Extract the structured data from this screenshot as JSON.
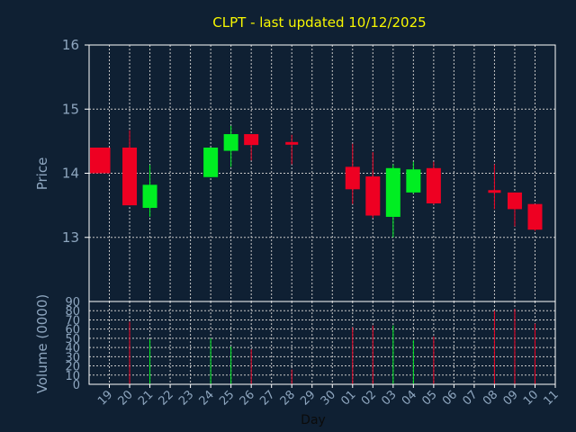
{
  "chart_data": {
    "type": "candlestick",
    "title": "CLPT - last updated 10/12/2025",
    "colors": {
      "background": "#0f2033",
      "plot_background": "#0f2033",
      "up": "#00ee22",
      "down": "#ee0022",
      "grid": "#c8c8c8",
      "text": "#8ea6bf",
      "title": "#f7f700"
    },
    "price_panel": {
      "ylabel": "Price",
      "ylim": [
        12.0,
        16.0
      ],
      "yticks": [
        "13",
        "14",
        "15",
        "16"
      ],
      "grid": true
    },
    "volume_panel": {
      "ylabel": "Volume (0000)",
      "ylim": [
        0,
        90
      ],
      "yticks": [
        "0",
        "10",
        "20",
        "30",
        "40",
        "50",
        "60",
        "70",
        "80",
        "90"
      ],
      "grid": true
    },
    "x_axis": {
      "xlabel": "Day",
      "tick_labels": [
        "19",
        "20",
        "21",
        "22",
        "23",
        "24",
        "25",
        "26",
        "27",
        "28",
        "29",
        "30",
        "01",
        "02",
        "03",
        "04",
        "05",
        "06",
        "07",
        "08",
        "09",
        "10",
        "11"
      ]
    },
    "candles": [
      {
        "day": "19",
        "open": 14.4,
        "close": 14.0,
        "high": 14.4,
        "low": 14.0,
        "volume": 0,
        "color": "down",
        "partial": true
      },
      {
        "day": "20",
        "open": 14.4,
        "close": 13.5,
        "high": 14.67,
        "low": 13.5,
        "volume": 68,
        "color": "down"
      },
      {
        "day": "21",
        "open": 13.46,
        "close": 13.82,
        "high": 14.13,
        "low": 13.32,
        "volume": 49,
        "color": "up"
      },
      {
        "day": "24",
        "open": 13.94,
        "close": 14.4,
        "high": 14.4,
        "low": 13.94,
        "volume": 50,
        "color": "up"
      },
      {
        "day": "25",
        "open": 14.35,
        "close": 14.61,
        "high": 14.74,
        "low": 14.1,
        "volume": 41,
        "color": "up"
      },
      {
        "day": "26",
        "open": 14.61,
        "close": 14.44,
        "high": 14.61,
        "low": 14.2,
        "volume": 38,
        "color": "down"
      },
      {
        "day": "28",
        "open": 14.48,
        "close": 14.47,
        "high": 14.6,
        "low": 14.14,
        "volume": 16,
        "color": "down"
      },
      {
        "day": "01",
        "open": 14.1,
        "close": 13.75,
        "high": 14.46,
        "low": 13.52,
        "volume": 62,
        "color": "down"
      },
      {
        "day": "02",
        "open": 13.95,
        "close": 13.34,
        "high": 14.33,
        "low": 13.3,
        "volume": 64,
        "color": "down"
      },
      {
        "day": "03",
        "open": 13.32,
        "close": 14.08,
        "high": 14.14,
        "low": 13.0,
        "volume": 64,
        "color": "up"
      },
      {
        "day": "04",
        "open": 13.7,
        "close": 14.06,
        "high": 14.18,
        "low": 13.68,
        "volume": 48,
        "color": "up"
      },
      {
        "day": "05",
        "open": 14.08,
        "close": 13.53,
        "high": 14.18,
        "low": 13.51,
        "volume": 52,
        "color": "down"
      },
      {
        "day": "08",
        "open": 13.73,
        "close": 13.7,
        "high": 14.14,
        "low": 13.44,
        "volume": 80,
        "color": "down"
      },
      {
        "day": "09",
        "open": 13.7,
        "close": 13.44,
        "high": 13.7,
        "low": 13.17,
        "volume": 82,
        "color": "down"
      },
      {
        "day": "10",
        "open": 13.52,
        "close": 13.12,
        "high": 13.52,
        "low": 13.1,
        "volume": 66,
        "color": "down"
      }
    ]
  }
}
